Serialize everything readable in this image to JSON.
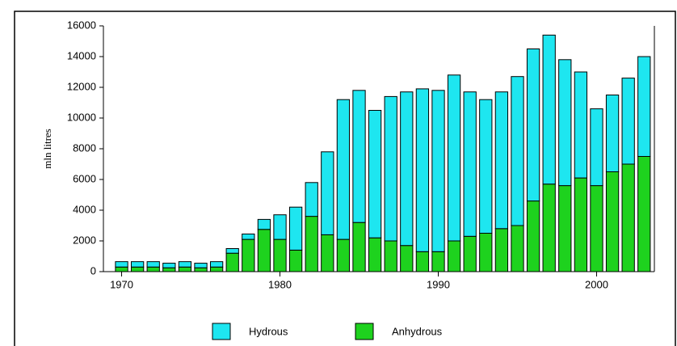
{
  "chart_data": {
    "type": "stacked-bar",
    "y_label": "mln litres",
    "x": [
      1970,
      1971,
      1972,
      1973,
      1974,
      1975,
      1976,
      1977,
      1978,
      1979,
      1980,
      1981,
      1982,
      1983,
      1984,
      1985,
      1986,
      1987,
      1988,
      1989,
      1990,
      1991,
      1992,
      1993,
      1994,
      1995,
      1996,
      1997,
      1998,
      1999,
      2000,
      2001,
      2002,
      2003
    ],
    "series": [
      {
        "name": "Hydrous",
        "color": "#1ee6f0",
        "values": [
          350,
          350,
          350,
          300,
          350,
          300,
          350,
          300,
          350,
          650,
          1600,
          2800,
          2200,
          5400,
          9100,
          8600,
          8300,
          9400,
          10000,
          10600,
          10500,
          10800,
          9400,
          8700,
          8900,
          9700,
          9900,
          9700,
          8200,
          6900,
          5000,
          5000,
          5600,
          6500
        ]
      },
      {
        "name": "Anhydrous",
        "color": "#1ed21e",
        "values": [
          300,
          300,
          300,
          250,
          300,
          250,
          300,
          1200,
          2100,
          2750,
          2100,
          1400,
          3600,
          2400,
          2100,
          3200,
          2200,
          2000,
          1700,
          1300,
          1300,
          2000,
          2300,
          2500,
          2800,
          3000,
          4600,
          5700,
          5600,
          6100,
          5600,
          6500,
          7000,
          7500
        ]
      }
    ],
    "xlim": [
      1968.85,
      2003.65
    ],
    "xticks": [
      1970,
      1980,
      1990,
      2000
    ],
    "ylim": [
      0,
      16000
    ],
    "yticks": [
      0,
      2000,
      4000,
      6000,
      8000,
      10000,
      12000,
      14000,
      16000
    ],
    "legend": "bottom"
  }
}
